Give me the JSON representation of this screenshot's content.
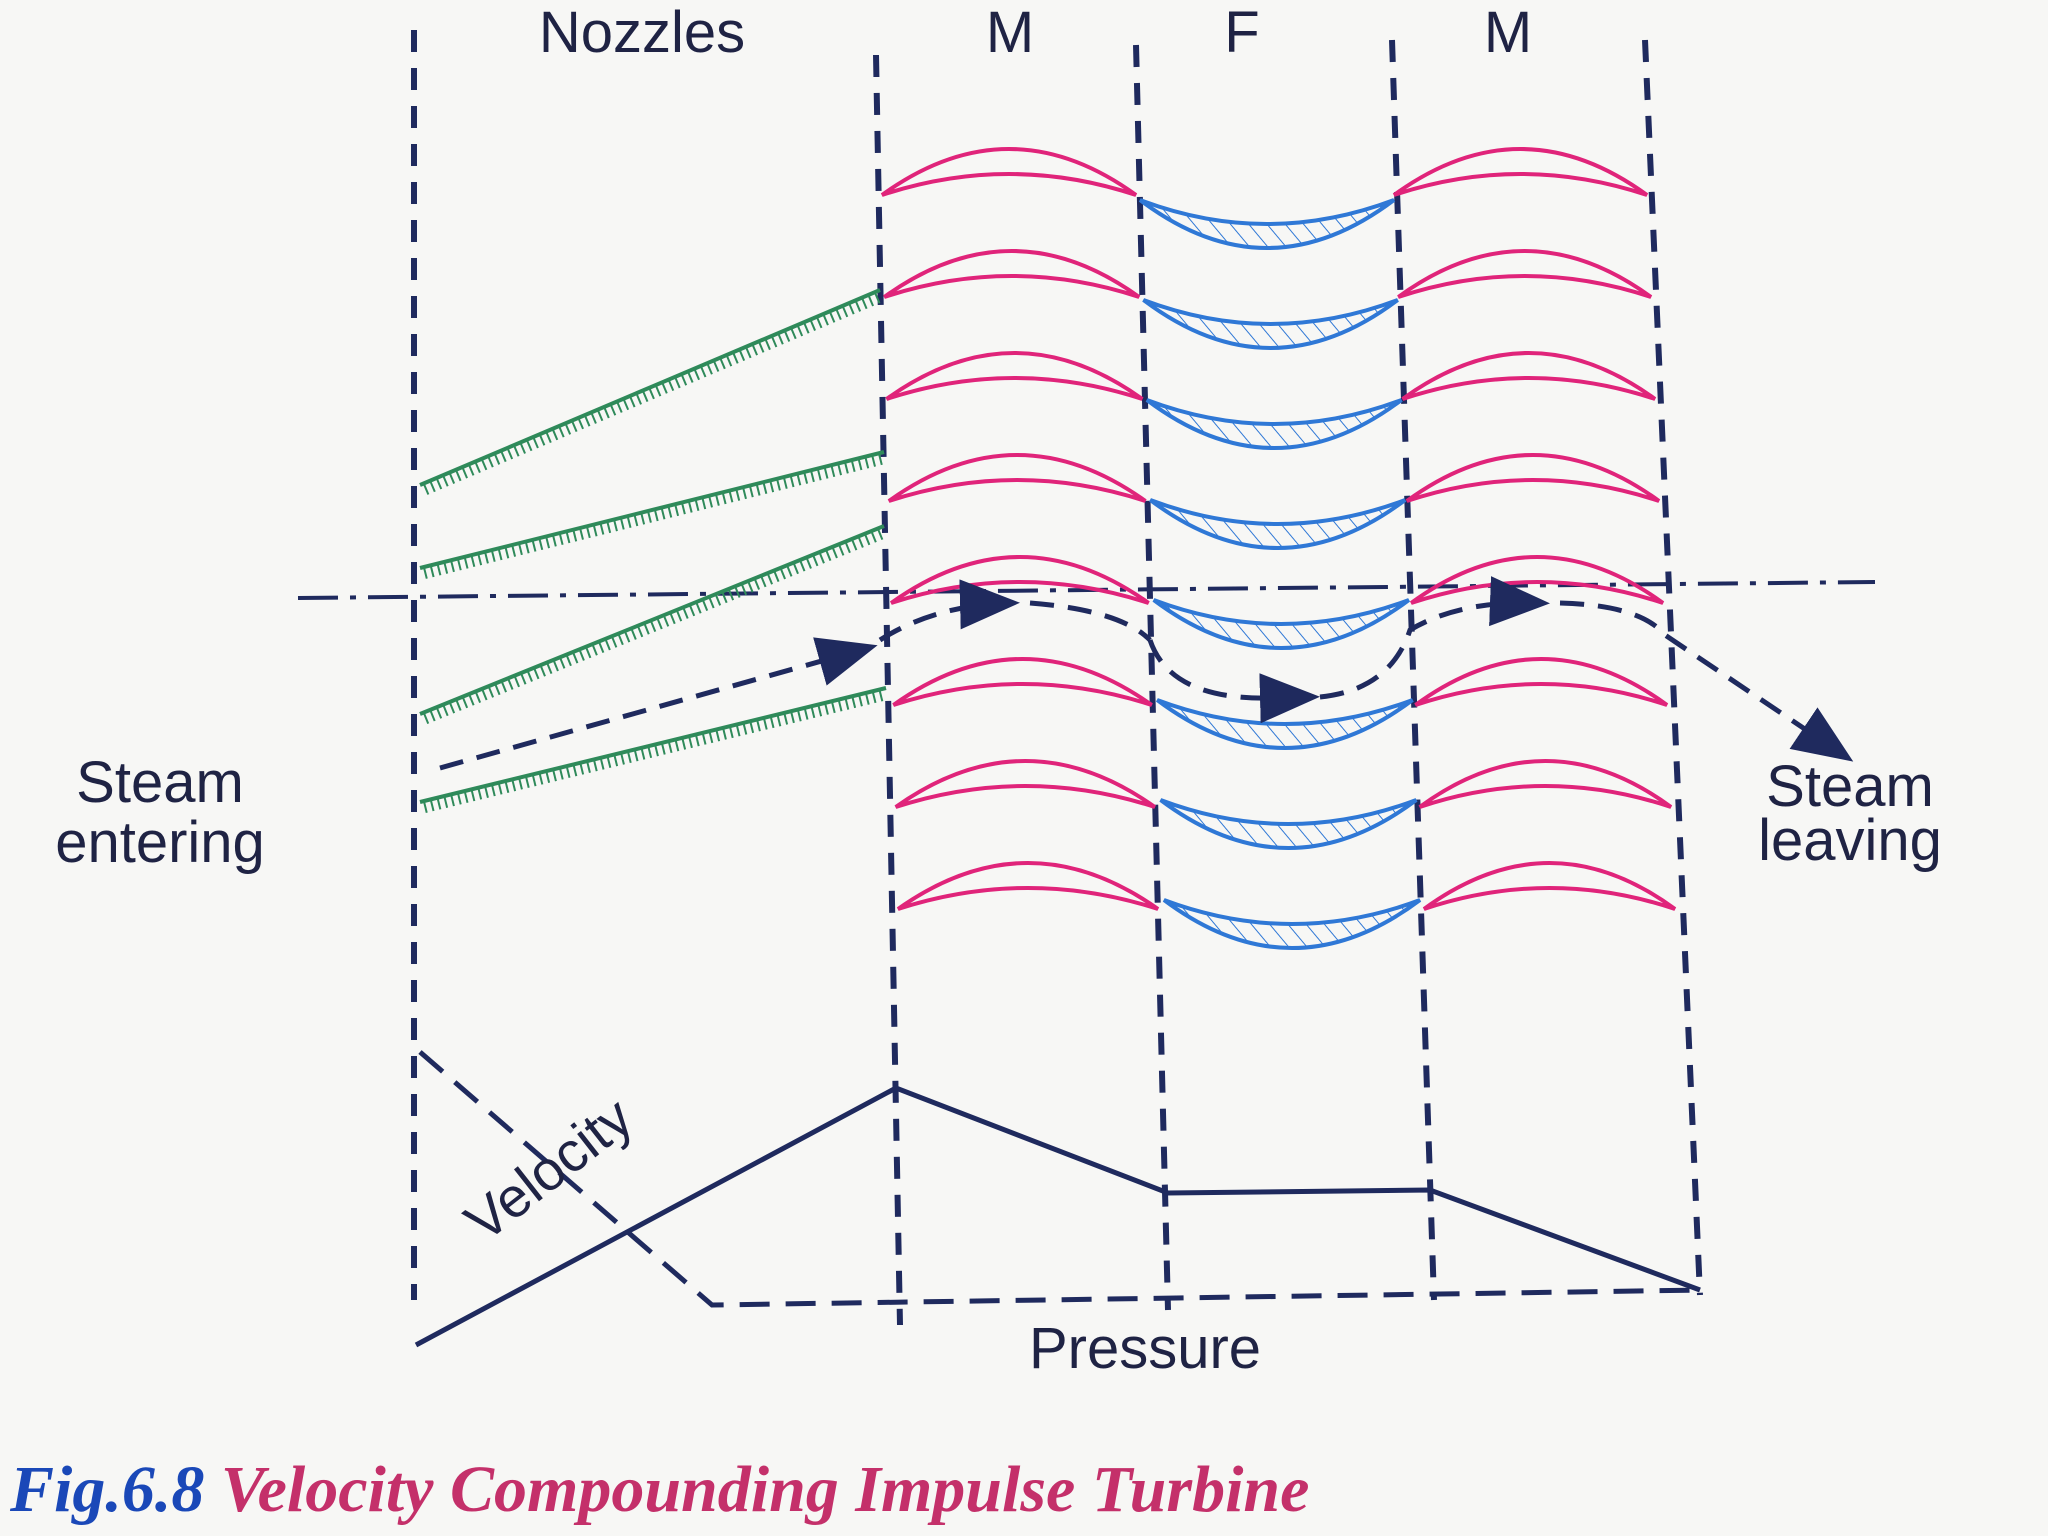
{
  "column_labels": {
    "nozzles": "Nozzles",
    "moving_1": "M",
    "fixed": "F",
    "moving_2": "M"
  },
  "steam_entering": [
    "Steam",
    "entering"
  ],
  "steam_leaving": [
    "Steam",
    "leaving"
  ],
  "velocity_label": "Velocity",
  "pressure_label": "Pressure",
  "caption": {
    "number": "Fig.6.8",
    "title": "Velocity Compounding Impulse Turbine"
  },
  "colors": {
    "outline": "#1f2a5e",
    "moving_blade": "#e0247a",
    "fixed_blade": "#2f78d6",
    "nozzle": "#2f8a5a",
    "caption_number": "#1a48b8",
    "caption_title": "#c4306a"
  }
}
